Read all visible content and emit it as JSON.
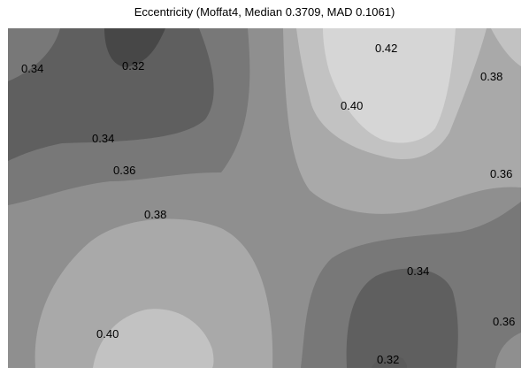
{
  "chart_data": {
    "type": "contour",
    "title": "Eccentricity (Moffat4, Median 0.3709, MAD 0.1061)",
    "xlabel": "",
    "ylabel": "",
    "levels": [
      0.32,
      0.34,
      0.36,
      0.38,
      0.4,
      0.42
    ],
    "fill_colors": [
      "#474747",
      "#5f5f5f",
      "#787878",
      "#8f8f8f",
      "#a9a9a9",
      "#c2c2c2",
      "#d6d6d6"
    ],
    "contour_labels": [
      {
        "text": "0.34",
        "level": 0.34
      },
      {
        "text": "0.32",
        "level": 0.32
      },
      {
        "text": "0.42",
        "level": 0.42
      },
      {
        "text": "0.38",
        "level": 0.38
      },
      {
        "text": "0.40",
        "level": 0.4
      },
      {
        "text": "0.34",
        "level": 0.34
      },
      {
        "text": "0.36",
        "level": 0.36
      },
      {
        "text": "0.36",
        "level": 0.36
      },
      {
        "text": "0.38",
        "level": 0.38
      },
      {
        "text": "0.34",
        "level": 0.34
      },
      {
        "text": "0.36",
        "level": 0.36
      },
      {
        "text": "0.40",
        "level": 0.4
      },
      {
        "text": "0.32",
        "level": 0.32
      }
    ]
  }
}
